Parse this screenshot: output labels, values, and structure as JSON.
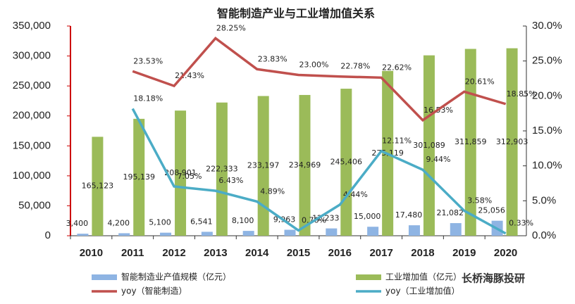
{
  "chart_data": {
    "type": "bar_line",
    "title": "智能制造产业与工业增加值关系",
    "categories": [
      "2010",
      "2011",
      "2012",
      "2013",
      "2014",
      "2015",
      "2016",
      "2017",
      "2018",
      "2019",
      "2020"
    ],
    "series": [
      {
        "name": "智能制造业产值规模（亿元）",
        "type": "bar",
        "color": "#8eb4e3",
        "values": [
          3400,
          4200,
          5100,
          6541,
          8100,
          9963,
          12233,
          15000,
          17480,
          21082,
          25056
        ],
        "value_labels": [
          "3,400",
          "4,200",
          "5,100",
          "6,541",
          "8,100",
          "9,963",
          "12,233",
          "15,000",
          "17,480",
          "21,082",
          "25,056"
        ]
      },
      {
        "name": "工业增加值（亿元）",
        "type": "bar",
        "color": "#9bbb59",
        "values": [
          165123,
          195139,
          208901,
          222333,
          233197,
          234969,
          245406,
          275119,
          301089,
          311859,
          312903
        ],
        "value_labels": [
          "165,123",
          "195,139",
          "208,901",
          "222,333",
          "233,197",
          "234,969",
          "245,406",
          "275,119",
          "301,089",
          "311,859",
          "312,903"
        ]
      },
      {
        "name": "yoy（智能制造）",
        "type": "line",
        "axis": "y2",
        "color": "#c0504d",
        "values": [
          null,
          23.53,
          21.43,
          28.25,
          23.83,
          23.0,
          22.78,
          22.62,
          16.53,
          20.61,
          18.85
        ],
        "value_labels": [
          null,
          "23.53%",
          "21.43%",
          "28.25%",
          "23.83%",
          "23.00%",
          "22.78%",
          "22.62%",
          "16.53%",
          "20.61%",
          "18.85%"
        ]
      },
      {
        "name": "yoy（工业增加值）",
        "type": "line",
        "axis": "y2",
        "color": "#4bacc6",
        "values": [
          null,
          18.18,
          7.05,
          6.43,
          4.89,
          0.76,
          4.44,
          12.11,
          9.44,
          3.58,
          0.33
        ],
        "value_labels": [
          null,
          "18.18%",
          "7.05%",
          "6.43%",
          "4.89%",
          "0.76%",
          "4.44%",
          "12.11%",
          "9.44%",
          "3.58%",
          "0.33%"
        ]
      }
    ],
    "ylim": [
      0,
      350000
    ],
    "yticks": [
      0,
      {
        "value": 50000,
        "label": "50,000"
      },
      {
        "value": 100000,
        "label": "100,000"
      },
      {
        "value": 150000,
        "label": "150,000"
      },
      {
        "value": 200000,
        "label": "200,000"
      },
      {
        "value": 250000,
        "label": "250,000"
      },
      {
        "value": 300000,
        "label": "300,000"
      },
      {
        "value": 350000,
        "label": "350,000"
      }
    ],
    "y2lim": [
      0,
      30
    ],
    "y2ticks": [
      {
        "value": 0,
        "label": "0.0%"
      },
      {
        "value": 5,
        "label": "5.0%"
      },
      {
        "value": 10,
        "label": "10.0%"
      },
      {
        "value": 15,
        "label": "15.0%"
      },
      {
        "value": 20,
        "label": "20.0%"
      },
      {
        "value": 25,
        "label": "25.0%"
      },
      {
        "value": 30,
        "label": "30.0%"
      }
    ],
    "watermark": "长桥海豚投研"
  }
}
